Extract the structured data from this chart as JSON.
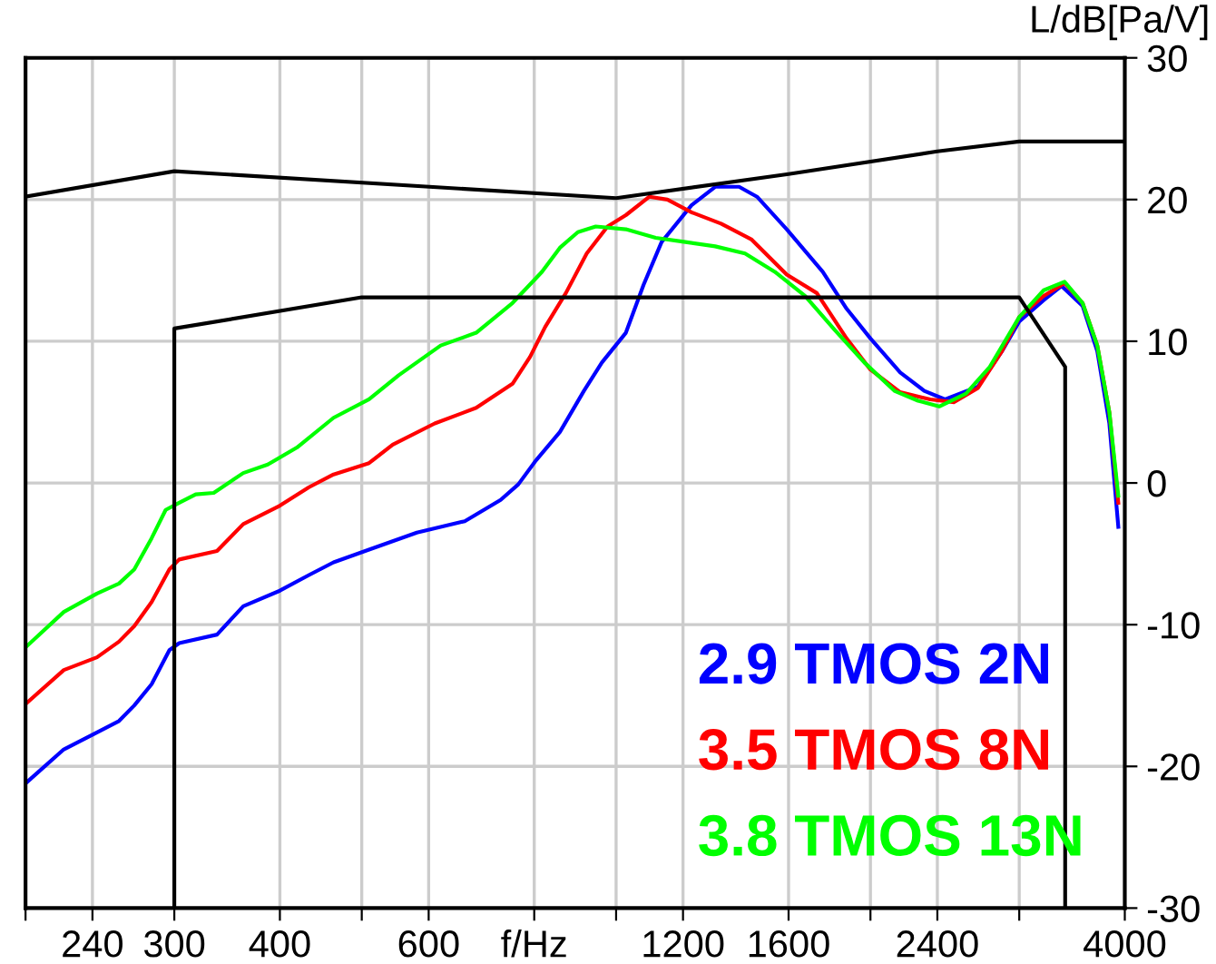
{
  "chart_data": {
    "type": "line",
    "ylabel": "L/dB[Pa/V]",
    "log": "x",
    "xlim": [
      200,
      4000
    ],
    "ylim": [
      -30,
      30
    ],
    "xticks": [
      {
        "value": 200,
        "label": null
      },
      240,
      300,
      400,
      {
        "value": 500,
        "label": null
      },
      600,
      {
        "value": 800,
        "label": "f/Hz"
      },
      {
        "value": 1000,
        "label": null
      },
      1200,
      1600,
      {
        "value": 2000,
        "label": null
      },
      2400,
      {
        "value": 3000,
        "label": null
      },
      4000
    ],
    "yticks": [
      -30,
      -20,
      -10,
      0,
      10,
      20,
      30
    ],
    "grid": true,
    "legend": "bottom right",
    "marker": "none",
    "line_style": "solid",
    "series": [
      {
        "name": "2.9 TMOS 2N",
        "color": "#0000ff",
        "x": [
          200,
          222,
          243,
          258,
          269,
          282,
          296,
          304,
          337,
          362,
          400,
          433,
          463,
          510,
          581,
          662,
          730,
          766,
          804,
          858,
          916,
          962,
          1027,
          1078,
          1132,
          1228,
          1310,
          1398,
          1468,
          1592,
          1756,
          1874,
          2000,
          2169,
          2316,
          2451,
          2681,
          2862,
          3000,
          3207,
          3366,
          3565,
          3711,
          3835,
          3930
        ],
        "values": [
          -21.2,
          -18.8,
          -17.6,
          -16.8,
          -15.7,
          -14.2,
          -11.8,
          -11.3,
          -10.7,
          -8.7,
          -7.6,
          -6.5,
          -5.6,
          -4.7,
          -3.5,
          -2.7,
          -1.2,
          -0.1,
          1.6,
          3.6,
          6.5,
          8.5,
          10.6,
          14.0,
          17.0,
          19.6,
          20.9,
          20.9,
          20.2,
          17.9,
          14.9,
          12.3,
          10.2,
          7.8,
          6.5,
          5.9,
          6.8,
          9.3,
          11.4,
          12.9,
          13.9,
          12.5,
          9.3,
          4.2,
          -3.1
        ]
      },
      {
        "name": "3.5 TMOS 8N",
        "color": "#ff0000",
        "x": [
          200,
          222,
          243,
          258,
          269,
          282,
          296,
          304,
          337,
          362,
          400,
          433,
          463,
          510,
          544,
          610,
          683,
          754,
          791,
          824,
          872,
          923,
          977,
          1027,
          1095,
          1150,
          1228,
          1331,
          1445,
          1592,
          1728,
          1874,
          2000,
          2169,
          2354,
          2512,
          2681,
          2862,
          3000,
          3207,
          3394,
          3565,
          3711,
          3835,
          3930
        ],
        "values": [
          -15.6,
          -13.2,
          -12.3,
          -11.2,
          -10.1,
          -8.4,
          -6.1,
          -5.4,
          -4.8,
          -2.9,
          -1.6,
          -0.3,
          0.6,
          1.4,
          2.7,
          4.2,
          5.3,
          7.0,
          8.9,
          11.0,
          13.4,
          16.2,
          18.1,
          18.9,
          20.2,
          20.0,
          19.1,
          18.3,
          17.2,
          14.7,
          13.4,
          10.2,
          8.0,
          6.4,
          5.9,
          5.7,
          6.7,
          9.3,
          11.7,
          13.2,
          14.1,
          12.7,
          9.7,
          5.0,
          -1.4
        ]
      },
      {
        "name": "3.8 TMOS 13N",
        "color": "#00ff00",
        "x": [
          200,
          222,
          243,
          258,
          269,
          282,
          293,
          304,
          318,
          334,
          362,
          387,
          419,
          463,
          510,
          553,
          620,
          683,
          754,
          817,
          858,
          901,
          946,
          1027,
          1114,
          1208,
          1310,
          1421,
          1541,
          1673,
          1814,
          1967,
          2135,
          2277,
          2412,
          2595,
          2769,
          3000,
          3207,
          3394,
          3565,
          3711,
          3835,
          3930
        ],
        "values": [
          -11.6,
          -9.1,
          -7.8,
          -7.1,
          -6.1,
          -3.9,
          -1.9,
          -1.4,
          -0.8,
          -0.7,
          0.7,
          1.3,
          2.5,
          4.6,
          5.9,
          7.6,
          9.7,
          10.6,
          12.7,
          14.9,
          16.6,
          17.7,
          18.1,
          17.9,
          17.3,
          17.0,
          16.7,
          16.2,
          14.9,
          13.2,
          10.8,
          8.5,
          6.5,
          5.8,
          5.4,
          6.3,
          8.2,
          11.7,
          13.6,
          14.2,
          12.7,
          9.7,
          5.0,
          -0.9
        ]
      },
      {
        "color": "#000000",
        "x": [
          200,
          300,
          1000,
          1600,
          2400,
          3000,
          4000
        ],
        "values": [
          20.2,
          22.0,
          20.1,
          21.8,
          23.4,
          24.1,
          24.1
        ]
      },
      {
        "color": "#000000",
        "x": [
          300,
          300,
          500,
          3000,
          3400,
          3400
        ],
        "values": [
          -30,
          10.9,
          13.1,
          13.1,
          8.2,
          -30
        ]
      }
    ]
  }
}
